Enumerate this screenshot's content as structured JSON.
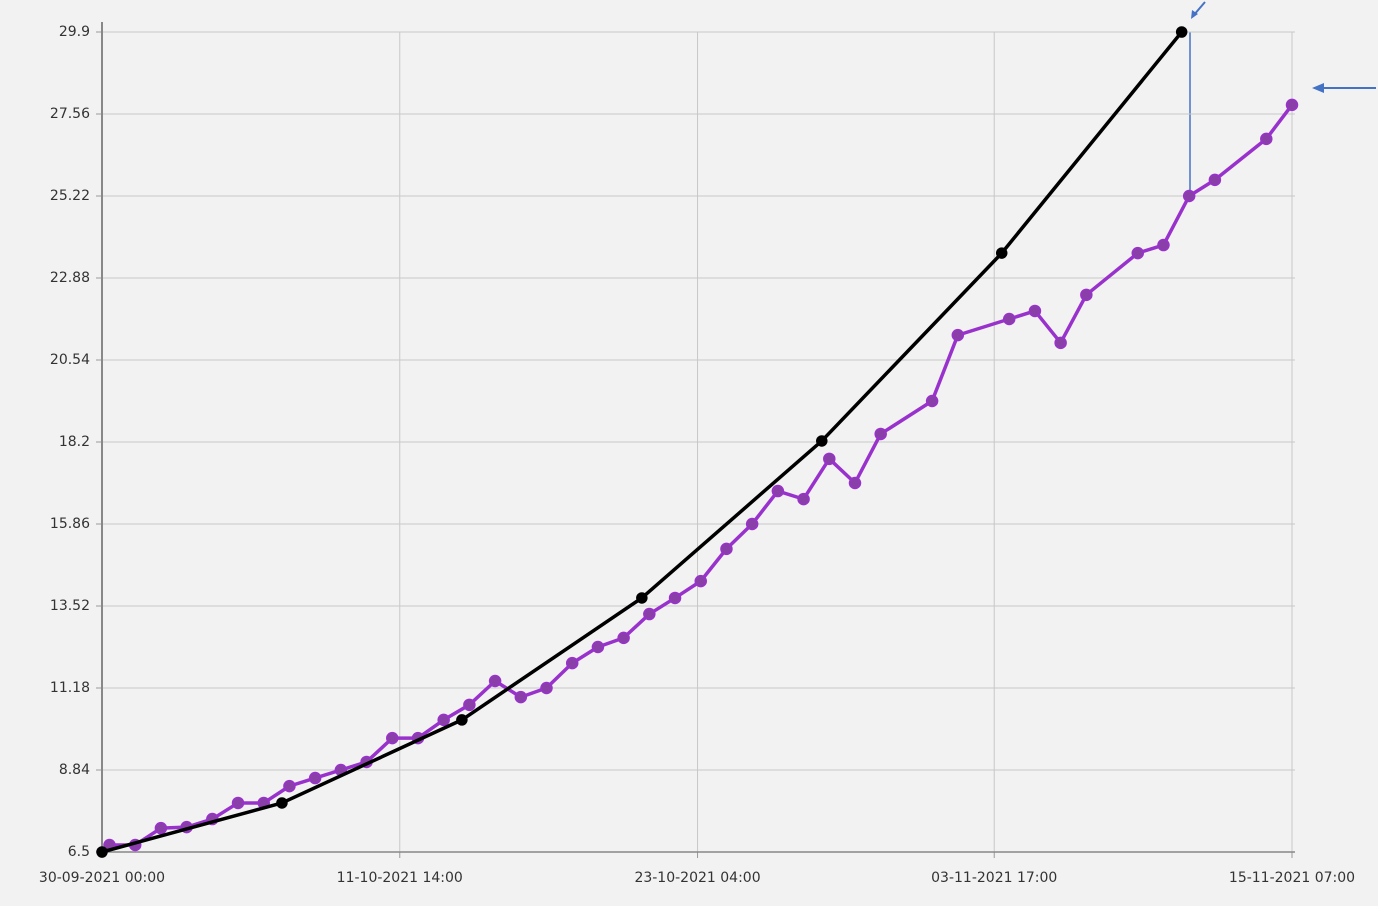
{
  "chart_data": {
    "type": "line",
    "x": [
      "2021-09-30 07:00",
      "2021-10-01 07:00",
      "2021-10-02 07:00",
      "2021-10-03 07:00",
      "2021-10-04 07:00",
      "2021-10-05 07:00",
      "2021-10-06 07:00",
      "2021-10-07 07:00",
      "2021-10-08 07:00",
      "2021-10-09 07:00",
      "2021-10-10 07:00",
      "2021-10-11 07:00",
      "2021-10-12 07:00",
      "2021-10-13 07:00",
      "2021-10-14 07:00",
      "2021-10-15 07:00",
      "2021-10-16 07:00",
      "2021-10-17 07:00",
      "2021-10-18 07:00",
      "2021-10-19 07:00",
      "2021-10-20 07:00",
      "2021-10-21 07:00",
      "2021-10-22 07:00",
      "2021-10-23 07:00",
      "2021-10-24 07:00",
      "2021-10-25 07:00",
      "2021-10-26 07:00",
      "2021-10-27 07:00",
      "2021-10-28 07:00",
      "2021-10-29 07:00",
      "2021-10-30 07:00",
      "2021-11-01 07:00",
      "2021-11-02 07:00",
      "2021-11-04 07:00",
      "2021-11-05 07:00",
      "2021-11-06 07:00",
      "2021-11-07 07:00",
      "2021-11-09 07:00",
      "2021-11-10 07:00",
      "2021-11-11 07:00",
      "2021-11-12 07:00",
      "2021-11-14 07:00",
      "2021-11-15 07:00"
    ],
    "series": [
      {
        "color": "#9932cc",
        "marker_color": "#8a3fa8",
        "values": [
          6.7,
          6.7,
          7.18,
          7.21,
          7.44,
          7.9,
          7.9,
          8.38,
          8.61,
          8.84,
          9.07,
          9.75,
          9.75,
          10.27,
          10.7,
          11.38,
          10.92,
          11.18,
          11.89,
          12.35,
          12.61,
          13.29,
          13.75,
          14.23,
          15.15,
          15.86,
          16.8,
          16.57,
          17.72,
          17.03,
          18.43,
          19.37,
          21.25,
          21.71,
          21.94,
          21.03,
          22.4,
          23.59,
          23.82,
          25.22,
          25.68,
          26.85,
          27.82
        ]
      },
      {
        "color": "#000000",
        "marker_color": "#000000",
        "x": [
          "2021-09-30 00:00",
          "2021-10-07 00:00",
          "2021-10-14 00:00",
          "2021-10-21 00:00",
          "2021-10-28 00:00",
          "2021-11-04 00:00",
          "2021-11-11 00:00"
        ],
        "values": [
          6.5,
          7.9,
          10.27,
          13.75,
          18.23,
          23.59,
          29.9
        ]
      }
    ],
    "xlim": [
      "2021-09-30 00:00",
      "2021-11-15 07:00"
    ],
    "xticks": [
      {
        "value": "2021-09-30 00:00",
        "label": "30-09-2021 00:00"
      },
      {
        "value": "2021-10-11 14:00",
        "label": "11-10-2021 14:00"
      },
      {
        "value": "2021-10-23 04:00",
        "label": "23-10-2021 04:00"
      },
      {
        "value": "2021-11-03 17:00",
        "label": "03-11-2021 17:00"
      },
      {
        "value": "2021-11-15 07:00",
        "label": "15-11-2021 07:00"
      }
    ],
    "ylim": [
      6.5,
      29.9
    ],
    "yticks": [
      6.5,
      8.84,
      11.18,
      13.52,
      15.86,
      18.2,
      20.54,
      22.88,
      25.22,
      27.56,
      29.9
    ],
    "grid": true
  }
}
